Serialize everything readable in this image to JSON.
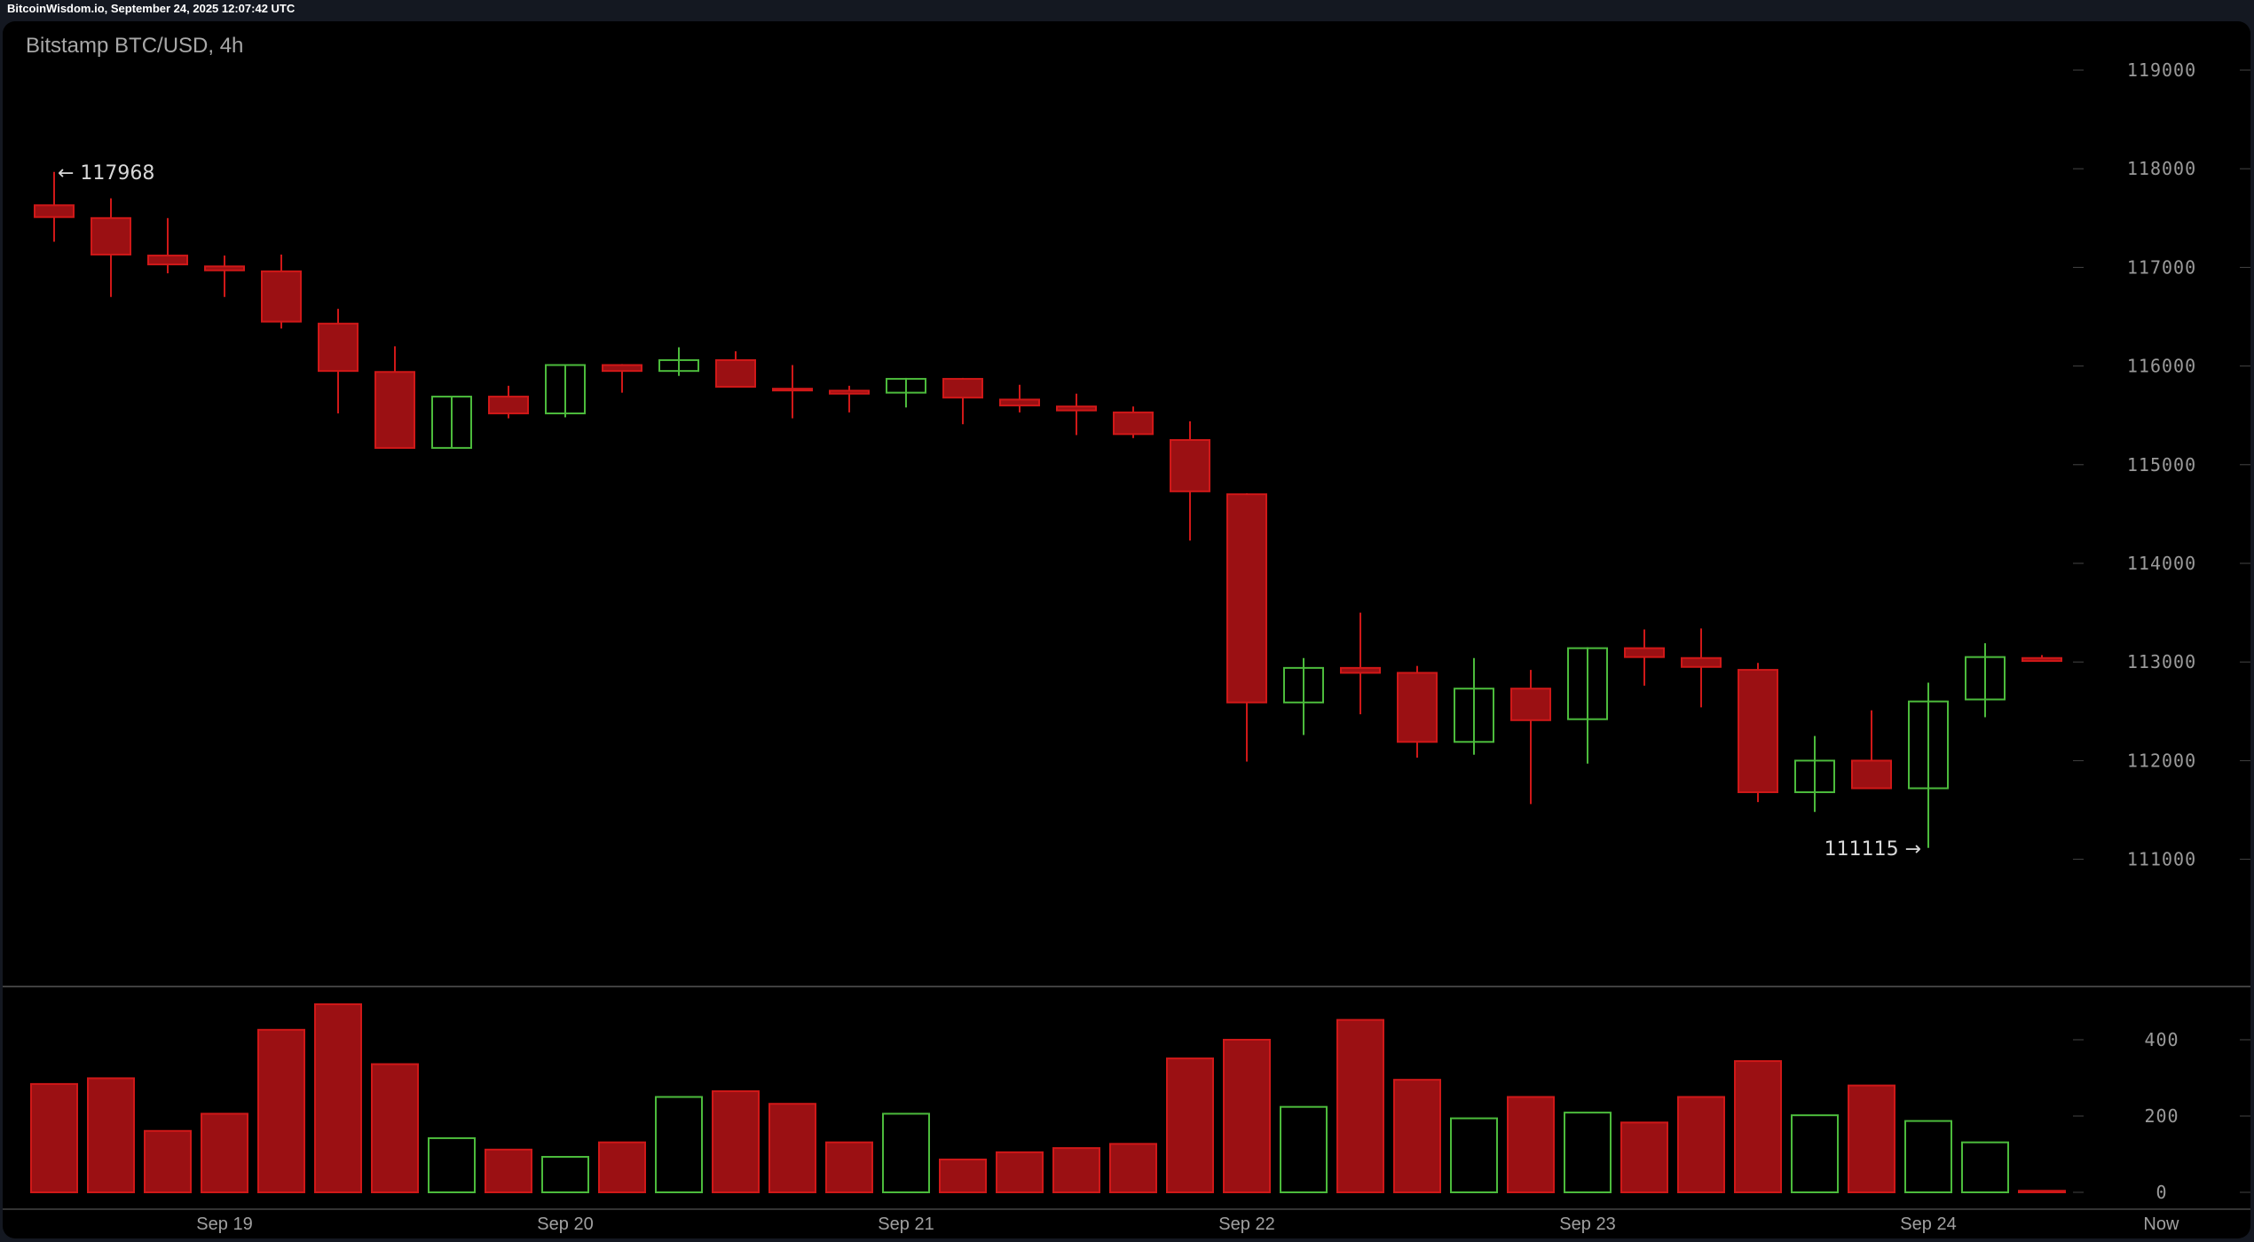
{
  "header": {
    "text": "BitcoinWisdom.io, September 24, 2025 12:07:42 UTC"
  },
  "chart_data": {
    "type": "candlestick",
    "title": "Bitstamp BTC/USD, 4h",
    "colors": {
      "up": "#4cbb3c",
      "down_stroke": "#d01818",
      "down_fill": "#9b1013",
      "background": "#000000"
    },
    "y_ticks": [
      "119000",
      "118000",
      "117000",
      "116000",
      "115000",
      "114000",
      "113000",
      "112000",
      "111000"
    ],
    "ylim": [
      110000,
      119400
    ],
    "volume_ticks": [
      "400",
      "200",
      "0"
    ],
    "volume_lim": [
      0,
      540
    ],
    "x_labels": [
      {
        "label": "Sep 19",
        "index": 3
      },
      {
        "label": "Sep 20",
        "index": 9
      },
      {
        "label": "Sep 21",
        "index": 15
      },
      {
        "label": "Sep 22",
        "index": 21
      },
      {
        "label": "Sep 23",
        "index": 27
      },
      {
        "label": "Sep 24",
        "index": 33
      },
      {
        "label": "Now",
        "index": 37.1
      }
    ],
    "annotations": {
      "high": "← 117968",
      "low": "111115 →"
    },
    "candles": [
      [
        117630,
        117968,
        117260,
        117510,
        284
      ],
      [
        117500,
        117700,
        116700,
        117130,
        299
      ],
      [
        117120,
        117500,
        116940,
        117030,
        161
      ],
      [
        117010,
        117120,
        116700,
        116970,
        206
      ],
      [
        116960,
        117130,
        116380,
        116450,
        426
      ],
      [
        116430,
        116580,
        115520,
        115950,
        493
      ],
      [
        115940,
        116200,
        115170,
        115170,
        336
      ],
      [
        115170,
        115690,
        115170,
        115690,
        142
      ],
      [
        115690,
        115800,
        115470,
        115520,
        112
      ],
      [
        115520,
        116010,
        115480,
        116010,
        93
      ],
      [
        116010,
        116020,
        115730,
        115950,
        131
      ],
      [
        115950,
        116190,
        115900,
        116060,
        250
      ],
      [
        116060,
        116150,
        115790,
        115790,
        265
      ],
      [
        115770,
        116010,
        115470,
        115760,
        232
      ],
      [
        115750,
        115800,
        115530,
        115720,
        131
      ],
      [
        115730,
        115880,
        115580,
        115870,
        206
      ],
      [
        115870,
        115880,
        115410,
        115680,
        86
      ],
      [
        115660,
        115810,
        115530,
        115600,
        105
      ],
      [
        115590,
        115720,
        115300,
        115550,
        116
      ],
      [
        115530,
        115590,
        115270,
        115310,
        127
      ],
      [
        115250,
        115440,
        114230,
        114730,
        351
      ],
      [
        114700,
        114710,
        111990,
        112590,
        400
      ],
      [
        112590,
        113040,
        112260,
        112940,
        224
      ],
      [
        112940,
        113500,
        112470,
        112890,
        452
      ],
      [
        112890,
        112960,
        112030,
        112190,
        295
      ],
      [
        112190,
        113040,
        112060,
        112730,
        194
      ],
      [
        112730,
        112920,
        111560,
        112410,
        250
      ],
      [
        112420,
        113150,
        111970,
        113140,
        209
      ],
      [
        113140,
        113330,
        112760,
        113050,
        183
      ],
      [
        113040,
        113340,
        112540,
        112950,
        250
      ],
      [
        112920,
        112990,
        111580,
        111680,
        344
      ],
      [
        111680,
        112250,
        111480,
        112000,
        202
      ],
      [
        112000,
        112510,
        111720,
        111720,
        280
      ],
      [
        111720,
        112790,
        111115,
        112600,
        187
      ],
      [
        112620,
        113190,
        112440,
        113050,
        131
      ],
      [
        113040,
        113070,
        113010,
        113010,
        4
      ]
    ],
    "candle_fields": [
      "open",
      "high",
      "low",
      "close",
      "volume"
    ]
  }
}
